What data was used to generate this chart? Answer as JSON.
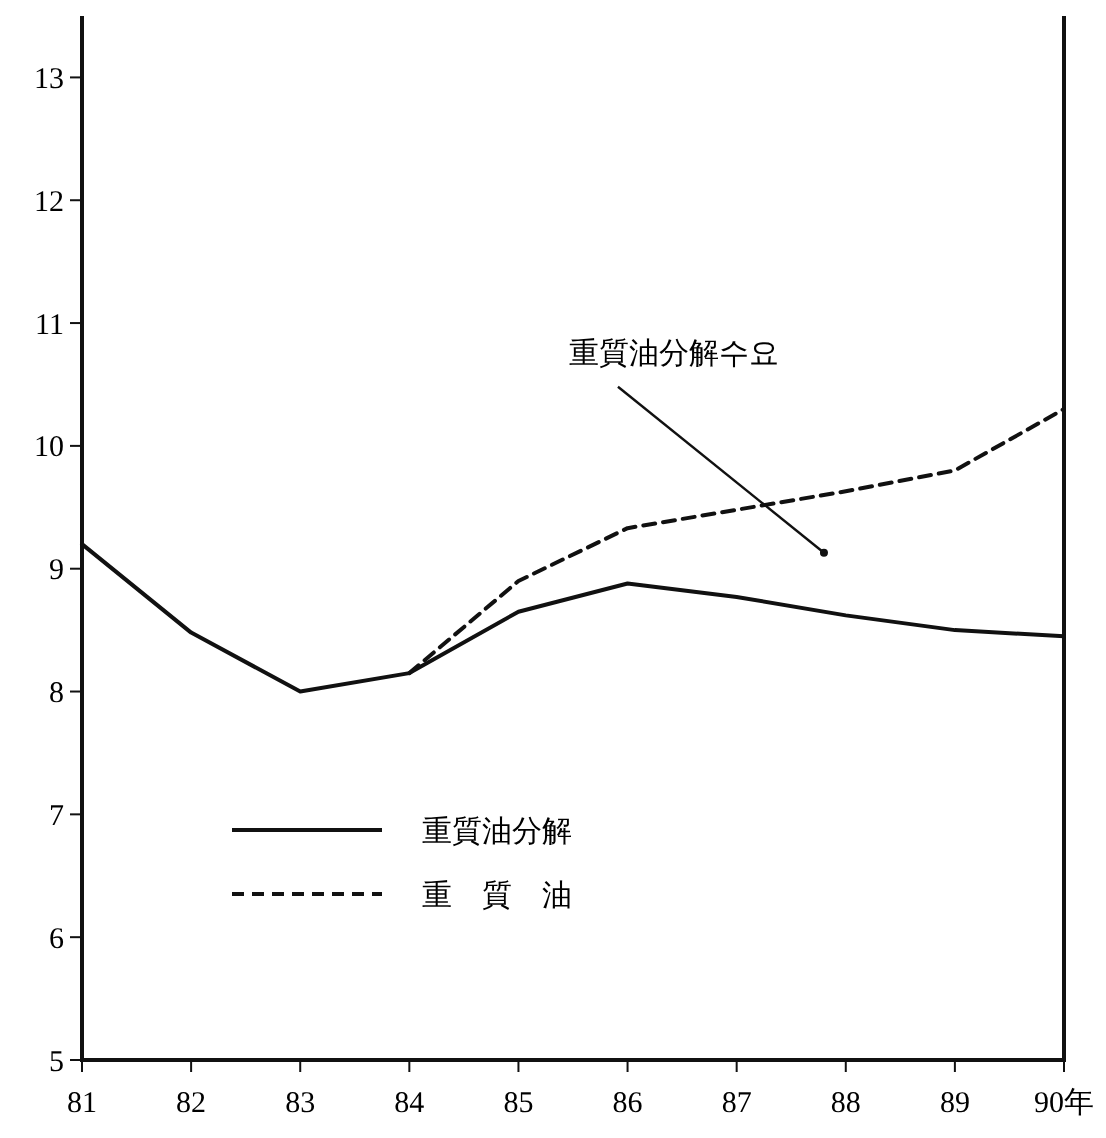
{
  "chart_data": {
    "type": "line",
    "x": [
      81,
      82,
      83,
      84,
      85,
      86,
      87,
      88,
      89,
      90
    ],
    "series": [
      {
        "name": "重質油分解",
        "color": "#111111",
        "line_style": "solid",
        "values": [
          9.2,
          8.48,
          8.0,
          8.15,
          8.65,
          8.88,
          8.77,
          8.62,
          8.5,
          8.45
        ]
      },
      {
        "name": "重　質　油",
        "color": "#111111",
        "line_style": "dashed",
        "values": [
          null,
          null,
          null,
          8.15,
          8.9,
          9.33,
          9.48,
          9.63,
          9.8,
          10.3
        ]
      }
    ],
    "xlim": [
      81,
      90
    ],
    "xticks": [
      81,
      82,
      83,
      84,
      85,
      86,
      87,
      88,
      89,
      {
        "value": 90,
        "label": "90年"
      }
    ],
    "ylim": [
      5,
      13.5
    ],
    "yticks": [
      5,
      6,
      7,
      8,
      9,
      10,
      11,
      12,
      13
    ],
    "annotations": [
      {
        "text": "重質油分解수요",
        "x": 87.8,
        "y": 9.13
      }
    ],
    "legend": "bottom left",
    "grid": false,
    "marker": "none"
  }
}
